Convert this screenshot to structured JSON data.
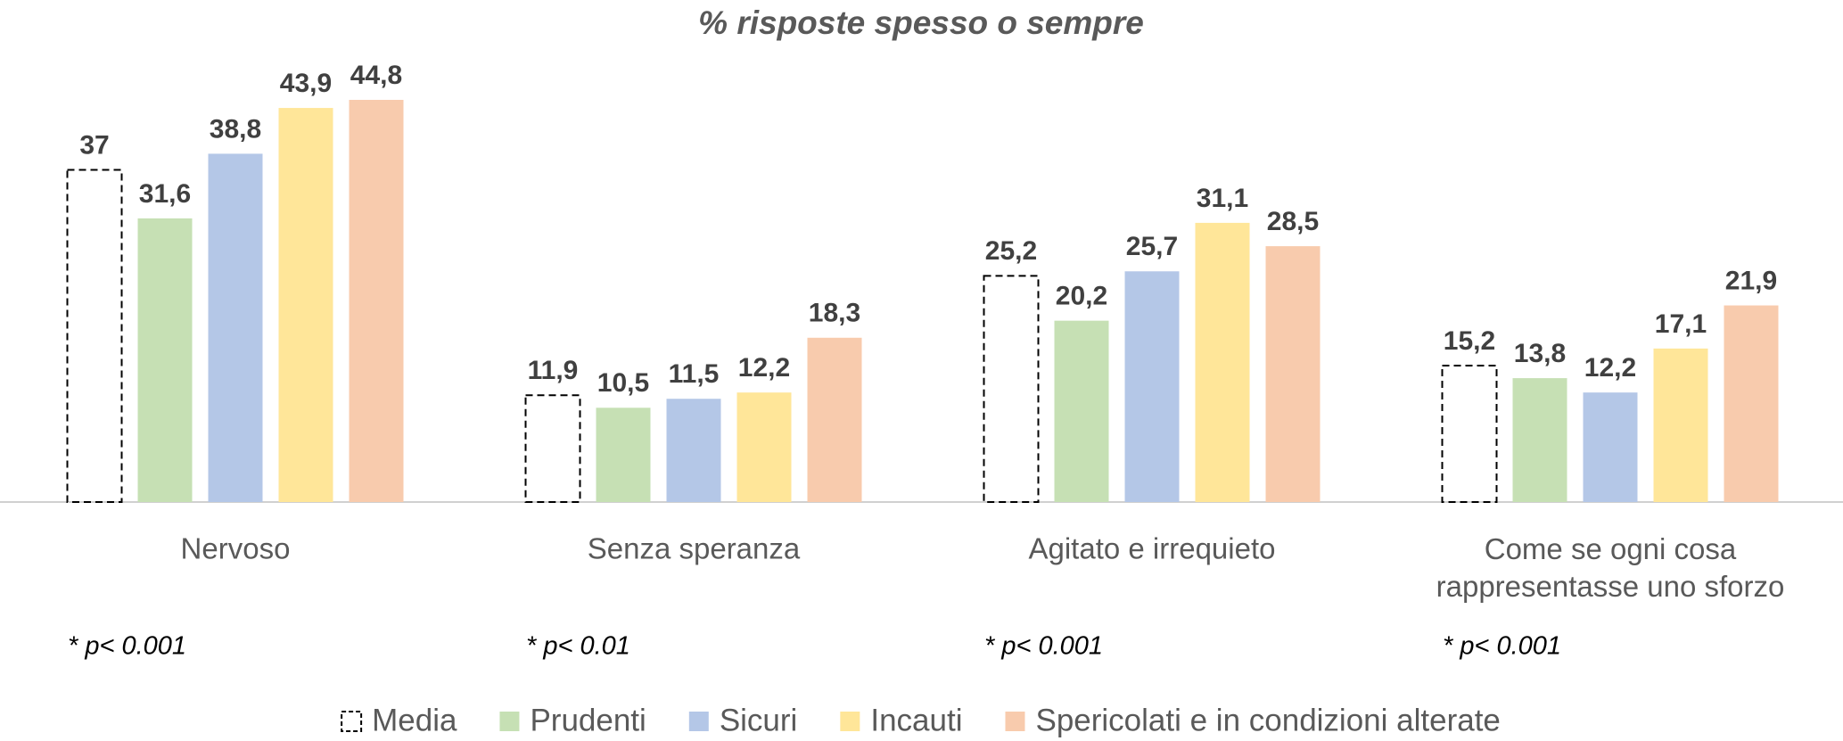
{
  "chart_data": {
    "type": "bar",
    "title": "% risposte spesso o sempre",
    "categories": [
      "Nervoso",
      "Senza speranza",
      "Agitato e irrequieto",
      "Come se ogni cosa\nrappresentasse uno sforzo"
    ],
    "annotations": [
      "* p< 0.001",
      "* p< 0.01",
      "* p< 0.001",
      "* p< 0.001"
    ],
    "series": [
      {
        "name": "Media",
        "color": "#000000",
        "style": "dashed",
        "values": [
          37,
          11.9,
          25.2,
          15.2
        ],
        "value_labels": [
          "37",
          "11,9",
          "25,2",
          "15,2"
        ]
      },
      {
        "name": "Prudenti",
        "color": "#c6e0b4",
        "values": [
          31.6,
          10.5,
          20.2,
          13.8
        ],
        "value_labels": [
          "31,6",
          "10,5",
          "20,2",
          "13,8"
        ]
      },
      {
        "name": "Sicuri",
        "color": "#b4c7e7",
        "values": [
          38.8,
          11.5,
          25.7,
          12.2
        ],
        "value_labels": [
          "38,8",
          "11,5",
          "25,7",
          "12,2"
        ]
      },
      {
        "name": "Incauti",
        "color": "#ffe699",
        "values": [
          43.9,
          12.2,
          31.1,
          17.1
        ],
        "value_labels": [
          "43,9",
          "12,2",
          "31,1",
          "17,1"
        ]
      },
      {
        "name": "Spericolati e in condizioni alterate",
        "color": "#f8cbad",
        "values": [
          44.8,
          18.3,
          28.5,
          21.9
        ],
        "value_labels": [
          "44,8",
          "18,3",
          "28,5",
          "21,9"
        ]
      }
    ],
    "legend": "bottom"
  }
}
